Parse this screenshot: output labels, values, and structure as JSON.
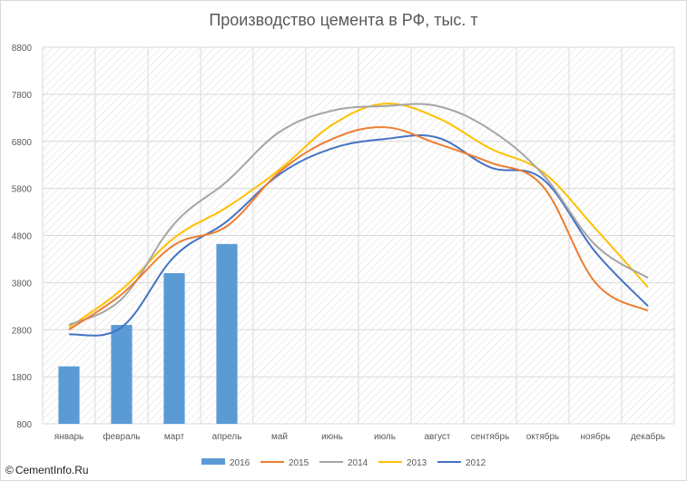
{
  "chart_data": {
    "type": "bar+line",
    "title": "Производство цемента в РФ, тыс. т",
    "categories": [
      "январь",
      "февраль",
      "март",
      "апрель",
      "май",
      "июнь",
      "июль",
      "август",
      "сентябрь",
      "октябрь",
      "ноябрь",
      "декабрь"
    ],
    "ylim": [
      800,
      8800
    ],
    "yticks": [
      800,
      1800,
      2800,
      3800,
      4800,
      5800,
      6800,
      7800,
      8800
    ],
    "ytick_labels": [
      "800",
      "1800",
      "2800",
      "3800",
      "4800",
      "5800",
      "6800",
      "7800",
      "8800"
    ],
    "grid": true,
    "legend_position": "bottom",
    "series": [
      {
        "name": "2016",
        "kind": "bar",
        "color": "#5b9bd5",
        "values": [
          2020,
          2900,
          4000,
          4620,
          null,
          null,
          null,
          null,
          null,
          null,
          null,
          null
        ]
      },
      {
        "name": "2015",
        "kind": "line",
        "color": "#ed7d31",
        "values": [
          2800,
          3550,
          4600,
          5000,
          6150,
          6850,
          7100,
          6750,
          6350,
          5850,
          3800,
          3200
        ]
      },
      {
        "name": "2014",
        "kind": "line",
        "color": "#a5a5a5",
        "values": [
          2900,
          3450,
          5050,
          5950,
          7000,
          7450,
          7550,
          7550,
          7050,
          6100,
          4600,
          3900
        ]
      },
      {
        "name": "2013",
        "kind": "line",
        "color": "#ffc000",
        "values": [
          2850,
          3650,
          4750,
          5400,
          6200,
          7150,
          7600,
          7300,
          6650,
          6150,
          4950,
          3700
        ]
      },
      {
        "name": "2012",
        "kind": "line",
        "color": "#4472c4",
        "values": [
          2700,
          2850,
          4350,
          5100,
          6100,
          6650,
          6850,
          6880,
          6250,
          6000,
          4450,
          3300
        ]
      }
    ]
  },
  "watermark": {
    "symbol": "©",
    "text": "CementInfo.Ru"
  }
}
